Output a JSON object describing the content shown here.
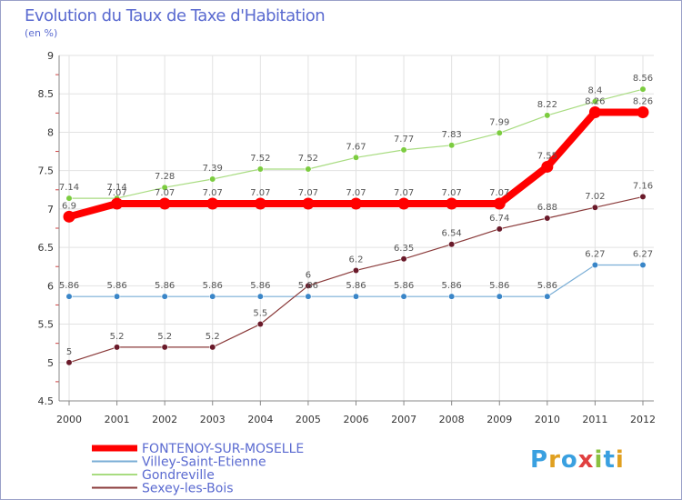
{
  "header": {
    "title": "Evolution du Taux de Taxe d'Habitation",
    "subtitle": "(en %)"
  },
  "logo": {
    "text": "Proxiti",
    "colors": [
      "#3aa0e0",
      "#e0a020",
      "#3aa0e0",
      "#e04040",
      "#8ac040",
      "#3aa0e0",
      "#e0a020"
    ]
  },
  "chart_data": {
    "type": "line",
    "x": [
      2000,
      2001,
      2002,
      2003,
      2004,
      2005,
      2006,
      2007,
      2008,
      2009,
      2010,
      2011,
      2012
    ],
    "ylim": [
      4.5,
      9
    ],
    "yticks": [
      "4.5",
      "5",
      "5.5",
      "6",
      "6.5",
      "7",
      "7.5",
      "8",
      "8.5",
      "9"
    ],
    "grid": true,
    "legend": "bottom-left",
    "series": [
      {
        "name": "FONTENOY-SUR-MOSELLE",
        "color": "#ff0000",
        "marker": "#ff0000",
        "width": 8,
        "values": [
          6.9,
          7.07,
          7.07,
          7.07,
          7.07,
          7.07,
          7.07,
          7.07,
          7.07,
          7.07,
          7.55,
          8.26,
          8.26
        ],
        "labels": [
          "6.9",
          "7.07",
          "7.07",
          "7.07",
          "7.07",
          "7.07",
          "7.07",
          "7.07",
          "7.07",
          "7.07",
          "7.55",
          "8.26",
          "8.26"
        ]
      },
      {
        "name": "Villey-Saint-Etienne",
        "color": "#7aaed6",
        "marker": "#3a86c8",
        "width": 1.2,
        "values": [
          5.86,
          5.86,
          5.86,
          5.86,
          5.86,
          5.86,
          5.86,
          5.86,
          5.86,
          5.86,
          5.86,
          6.27,
          6.27
        ],
        "labels": [
          "5.86",
          "5.86",
          "5.86",
          "5.86",
          "5.86",
          "5.86",
          "5.86",
          "5.86",
          "5.86",
          "5.86",
          "5.86",
          "6.27",
          "6.27"
        ]
      },
      {
        "name": "Gondreville",
        "color": "#a8dc80",
        "marker": "#7ccc40",
        "width": 1.2,
        "values": [
          7.14,
          7.14,
          7.28,
          7.39,
          7.52,
          7.52,
          7.67,
          7.77,
          7.83,
          7.99,
          8.22,
          8.4,
          8.56
        ],
        "labels": [
          "7.14",
          "7.14",
          "7.28",
          "7.39",
          "7.52",
          "7.52",
          "7.67",
          "7.77",
          "7.83",
          "7.99",
          "8.22",
          "8.4",
          "8.56"
        ]
      },
      {
        "name": "Sexey-les-Bois",
        "color": "#8a3a3a",
        "marker": "#6a1a2a",
        "width": 1.2,
        "values": [
          5,
          5.2,
          5.2,
          5.2,
          5.5,
          6,
          6.2,
          6.35,
          6.54,
          6.74,
          6.88,
          7.02,
          7.16
        ],
        "labels": [
          "5",
          "5.2",
          "5.2",
          "5.2",
          "5.5",
          "6",
          "6.2",
          "6.35",
          "6.54",
          "6.74",
          "6.88",
          "7.02",
          "7.16"
        ]
      }
    ]
  }
}
